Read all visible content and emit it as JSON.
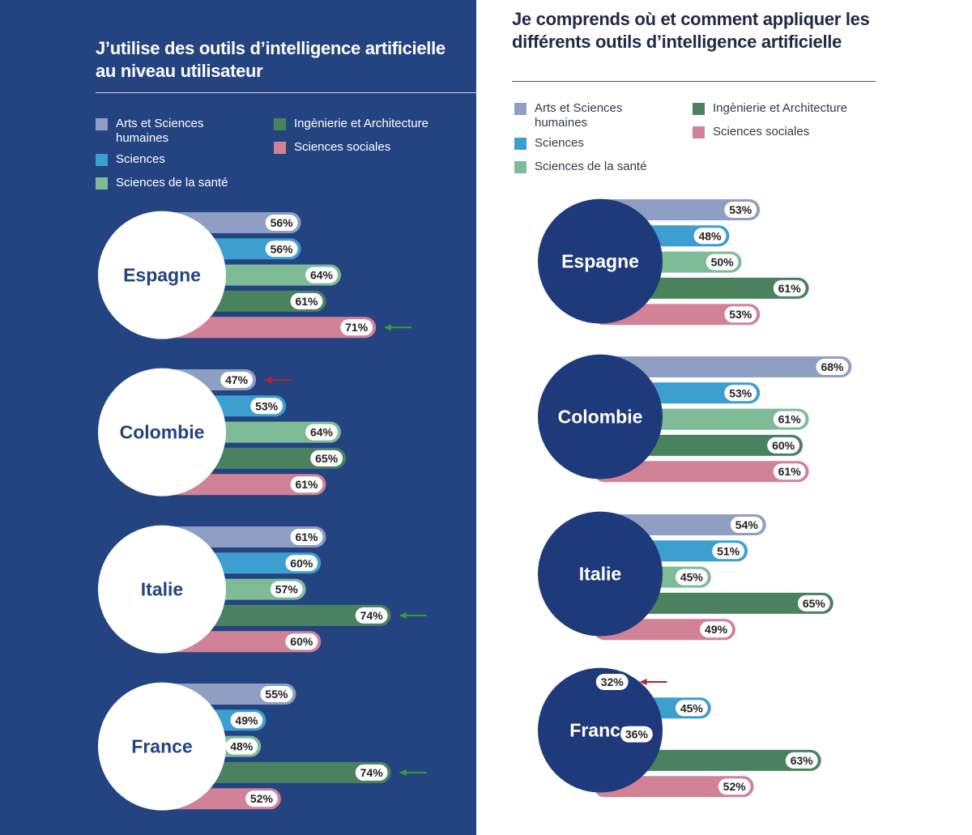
{
  "legend": [
    {
      "name": "Arts et Sciences humaines",
      "color": "#8e9fc3"
    },
    {
      "name": "Sciences",
      "color": "#3d9fd0"
    },
    {
      "name": "Sciences de la santé",
      "color": "#7ebc98"
    },
    {
      "name": "Ingènierie et Architecture",
      "color": "#4a8260"
    },
    {
      "name": "Sciences sociales",
      "color": "#d18297"
    }
  ],
  "colors": {
    "left_background": "#244381",
    "right_background": "#ffffff",
    "left_circle_fill": "#ffffff",
    "left_circle_text": "#244381",
    "right_circle_fill": "#1f3a7a",
    "right_circle_text": "#ffffff",
    "arrow_high": "#3a9a3a",
    "arrow_low": "#b3262c"
  },
  "chart_data": [
    {
      "type": "bar",
      "id": "left",
      "title": "J’utilise des outils d’intelligence artificielle au niveau utilisateur",
      "unit": "%",
      "categories": [
        "Espagne",
        "Colombie",
        "Italie",
        "France"
      ],
      "series": [
        {
          "name": "Arts et Sciences humaines",
          "values": [
            56,
            47,
            61,
            55
          ]
        },
        {
          "name": "Sciences",
          "values": [
            56,
            53,
            60,
            49
          ]
        },
        {
          "name": "Sciences de la santé",
          "values": [
            64,
            64,
            57,
            48
          ]
        },
        {
          "name": "Ingènierie et Architecture",
          "values": [
            61,
            65,
            74,
            74
          ]
        },
        {
          "name": "Sciences sociales",
          "values": [
            71,
            61,
            60,
            52
          ]
        }
      ],
      "annotations": [
        {
          "country": "Espagne",
          "series": "Sciences sociales",
          "type": "high"
        },
        {
          "country": "Colombie",
          "series": "Arts et Sciences humaines",
          "type": "low"
        },
        {
          "country": "Italie",
          "series": "Ingènierie et Architecture",
          "type": "high"
        },
        {
          "country": "France",
          "series": "Ingènierie et Architecture",
          "type": "high"
        }
      ]
    },
    {
      "type": "bar",
      "id": "right",
      "title": "Je comprends où et comment appliquer les différents outils d’intelligence artificielle",
      "unit": "%",
      "categories": [
        "Espagne",
        "Colombie",
        "Italie",
        "France"
      ],
      "series": [
        {
          "name": "Arts et Sciences humaines",
          "values": [
            53,
            68,
            54,
            32
          ]
        },
        {
          "name": "Sciences",
          "values": [
            48,
            53,
            51,
            45
          ]
        },
        {
          "name": "Sciences de la santé",
          "values": [
            50,
            61,
            45,
            36
          ]
        },
        {
          "name": "Ingènierie et Architecture",
          "values": [
            61,
            60,
            65,
            63
          ]
        },
        {
          "name": "Sciences sociales",
          "values": [
            53,
            61,
            49,
            52
          ]
        }
      ],
      "annotations": [
        {
          "country": "France",
          "series": "Arts et Sciences humaines",
          "type": "low"
        }
      ]
    }
  ]
}
